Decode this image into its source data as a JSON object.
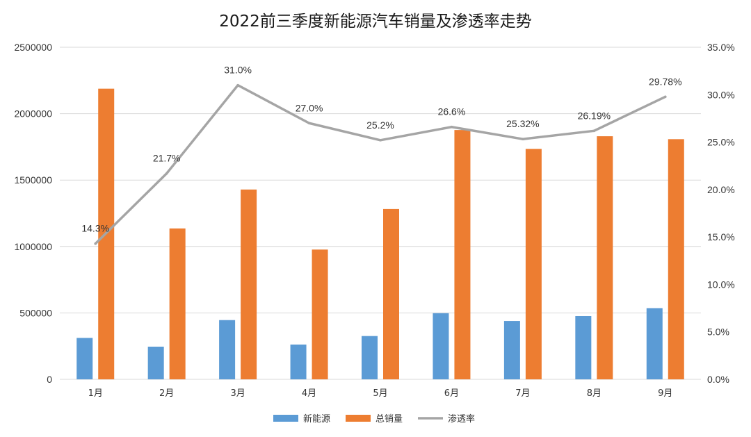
{
  "chart_data": {
    "type": "bar",
    "title": "2022前三季度新能源汽车销量及渗透率走势",
    "categories": [
      "1月",
      "2月",
      "3月",
      "4月",
      "5月",
      "6月",
      "7月",
      "8月",
      "9月"
    ],
    "series": [
      {
        "name": "新能源",
        "kind": "bar",
        "axis": "left",
        "color": "#5b9bd5",
        "values": [
          312000,
          246000,
          446000,
          262000,
          326000,
          498000,
          439000,
          476000,
          536000
        ]
      },
      {
        "name": "总销量",
        "kind": "bar",
        "axis": "left",
        "color": "#ed7d31",
        "values": [
          2188000,
          1136000,
          1429000,
          977000,
          1282000,
          1877000,
          1735000,
          1830000,
          1808000
        ]
      },
      {
        "name": "渗透率",
        "kind": "line",
        "axis": "right",
        "color": "#a5a5a5",
        "values": [
          14.3,
          21.7,
          31.0,
          27.0,
          25.2,
          26.6,
          25.32,
          26.19,
          29.78
        ],
        "labels": [
          "14.3%",
          "21.7%",
          "31.0%",
          "27.0%",
          "25.2%",
          "26.6%",
          "25.32%",
          "26.19%",
          "29.78%"
        ]
      }
    ],
    "y_left": {
      "min": 0,
      "max": 2500000,
      "ticks": [
        0,
        500000,
        1000000,
        1500000,
        2000000,
        2500000
      ],
      "tick_labels": [
        "0",
        "500000",
        "1000000",
        "1500000",
        "2000000",
        "2500000"
      ]
    },
    "y_right": {
      "min": 0,
      "max": 35,
      "ticks": [
        0,
        5,
        10,
        15,
        20,
        25,
        30,
        35
      ],
      "tick_labels": [
        "0.0%",
        "5.0%",
        "10.0%",
        "15.0%",
        "20.0%",
        "25.0%",
        "30.0%",
        "35.0%"
      ]
    },
    "grid": true,
    "legend": "bottom"
  }
}
